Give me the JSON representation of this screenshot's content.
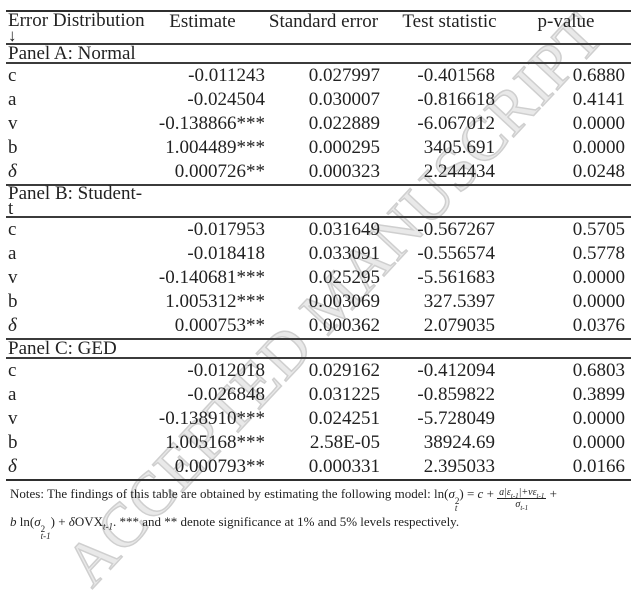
{
  "watermark": "ACCEPTED MANUSCRIPT",
  "colors": {
    "text": "#222222",
    "rule": "#2f2f2f",
    "watermark_stroke": "#cfcfcf"
  },
  "table": {
    "header": {
      "col1_line1": "Error Distribution",
      "col1_line2": "↓",
      "col2": "Estimate",
      "col3": "Standard error",
      "col4": "Test statistic",
      "col5": "p-value"
    },
    "panels": [
      {
        "title_line1": "Panel A: Normal",
        "rows": [
          {
            "param": "c",
            "estimate": "-0.011243",
            "std_error": "0.027997",
            "test_stat": "-0.401568",
            "p_value": "0.6880"
          },
          {
            "param": "a",
            "estimate": "-0.024504",
            "std_error": "0.030007",
            "test_stat": "-0.816618",
            "p_value": "0.4141"
          },
          {
            "param": "v",
            "estimate": "-0.138866***",
            "std_error": "0.022889",
            "test_stat": "-6.067012",
            "p_value": "0.0000"
          },
          {
            "param": "b",
            "estimate": "1.004489***",
            "std_error": "0.000295",
            "test_stat": "3405.691",
            "p_value": "0.0000"
          },
          {
            "param": "δ",
            "estimate": "0.000726**",
            "std_error": "0.000323",
            "test_stat": "2.244434",
            "p_value": "0.0248"
          }
        ]
      },
      {
        "title_line1": "Panel B: Student-",
        "title_line2": "t",
        "rows": [
          {
            "param": "c",
            "estimate": "-0.017953",
            "std_error": "0.031649",
            "test_stat": "-0.567267",
            "p_value": "0.5705"
          },
          {
            "param": "a",
            "estimate": "-0.018418",
            "std_error": "0.033091",
            "test_stat": "-0.556574",
            "p_value": "0.5778"
          },
          {
            "param": "v",
            "estimate": "-0.140681***",
            "std_error": "0.025295",
            "test_stat": "-5.561683",
            "p_value": "0.0000"
          },
          {
            "param": "b",
            "estimate": "1.005312***",
            "std_error": "0.003069",
            "test_stat": "327.5397",
            "p_value": "0.0000"
          },
          {
            "param": "δ",
            "estimate": "0.000753**",
            "std_error": "0.000362",
            "test_stat": "2.079035",
            "p_value": "0.0376"
          }
        ]
      },
      {
        "title_line1": "Panel C: GED",
        "rows": [
          {
            "param": "c",
            "estimate": "-0.012018",
            "std_error": "0.029162",
            "test_stat": "-0.412094",
            "p_value": "0.6803"
          },
          {
            "param": "a",
            "estimate": "-0.026848",
            "std_error": "0.031225",
            "test_stat": "-0.859822",
            "p_value": "0.3899"
          },
          {
            "param": "v",
            "estimate": "-0.138910***",
            "std_error": "0.024251",
            "test_stat": "-5.728049",
            "p_value": "0.0000"
          },
          {
            "param": "b",
            "estimate": "1.005168***",
            "std_error": "2.58E-05",
            "test_stat": "38924.69",
            "p_value": "0.0000"
          },
          {
            "param": "δ",
            "estimate": "0.000793**",
            "std_error": "0.000331",
            "test_stat": "2.395033",
            "p_value": "0.0166"
          }
        ]
      }
    ]
  },
  "notes": {
    "intro": "Notes: The findings of this table are obtained by estimating the following model: ",
    "f": {
      "ln1": "ln(",
      "sigma1": "σ",
      "sup1": "2",
      "sub1": "t",
      "eq": ") = ",
      "c": "c",
      "plus1": " + ",
      "num1": "a|ε",
      "numsub1": "t-1",
      "num2": "|+vε",
      "numsub2": "t-1",
      "den1": "σ",
      "densub": "t-1",
      "plus2": " +",
      "b": "b",
      "ln2": " ln(",
      "sigma2": "σ",
      "sup2": "2",
      "sub2": "t-1",
      "close2": ") + ",
      "delta": "δ",
      "ovx": "OVX",
      "ovxsub": "t-1",
      "dot": ". "
    },
    "tail": "*** and ** denote significance at 1% and 5% levels respectively."
  }
}
